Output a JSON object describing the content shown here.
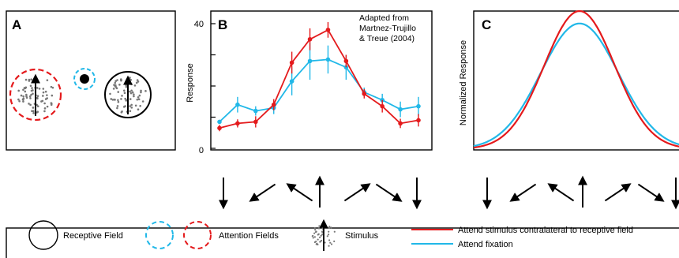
{
  "colors": {
    "attend_contralateral": "#e41a1c",
    "attend_fixation": "#21b8e8",
    "stimulus_dots": "#777777",
    "outline": "#000000"
  },
  "panels": {
    "a": {
      "letter": "A"
    },
    "b": {
      "letter": "B",
      "note_lines": [
        "Adapted from",
        "Martnez-Trujillo",
        "& Treue (2004)"
      ]
    },
    "c": {
      "letter": "C"
    }
  },
  "legend": {
    "receptive_field": "Receptive Field",
    "attention_fields": "Attention Fields",
    "stimulus": "Stimulus",
    "attend_contralateral": "Attend stimulus contralateral to receptive field",
    "attend_fixation": "Attend fixation"
  },
  "direction_arrows": {
    "panel_b": [
      "down",
      "down-left",
      "up-left",
      "up",
      "up-right",
      "down-right",
      "down"
    ],
    "panel_c": [
      "down",
      "down-left",
      "up-left",
      "up",
      "up-right",
      "down-right",
      "down"
    ]
  },
  "chart_data": [
    {
      "panel": "B",
      "type": "line",
      "ylabel": "Response",
      "yticks": [
        "0",
        "40"
      ],
      "ylim": [
        0,
        40
      ],
      "x": [
        1,
        2,
        3,
        4,
        5,
        6,
        7,
        8,
        9,
        10,
        11,
        12
      ],
      "series": [
        {
          "key": "attend_contralateral",
          "color": "#e41a1c",
          "values": [
            6.5,
            8,
            8.5,
            14,
            27.5,
            35,
            38,
            28,
            17.5,
            13.5,
            8,
            9
          ],
          "errors": [
            1,
            1.3,
            1.8,
            1.8,
            3.5,
            3.5,
            2.5,
            2,
            1.5,
            2,
            1.5,
            2
          ]
        },
        {
          "key": "attend_fixation",
          "color": "#21b8e8",
          "values": [
            8.5,
            14,
            12,
            13,
            21.5,
            28,
            28.5,
            26,
            18,
            15.5,
            12.5,
            13.5
          ],
          "errors": [
            0,
            2.5,
            1.5,
            2,
            4.5,
            6,
            4.5,
            4,
            1.5,
            2,
            2.5,
            3
          ]
        }
      ]
    },
    {
      "panel": "C",
      "type": "line",
      "ylabel": "Normalized Response",
      "x": [
        -3,
        -2,
        -1,
        0,
        1,
        2,
        3
      ],
      "series": [
        {
          "key": "attend_contralateral",
          "color": "#e41a1c",
          "peak": 1.0,
          "baseline": 0.0,
          "width": 1.0
        },
        {
          "key": "attend_fixation",
          "color": "#21b8e8",
          "peak": 0.91,
          "baseline": 0.0,
          "width": 1.1
        }
      ]
    }
  ]
}
